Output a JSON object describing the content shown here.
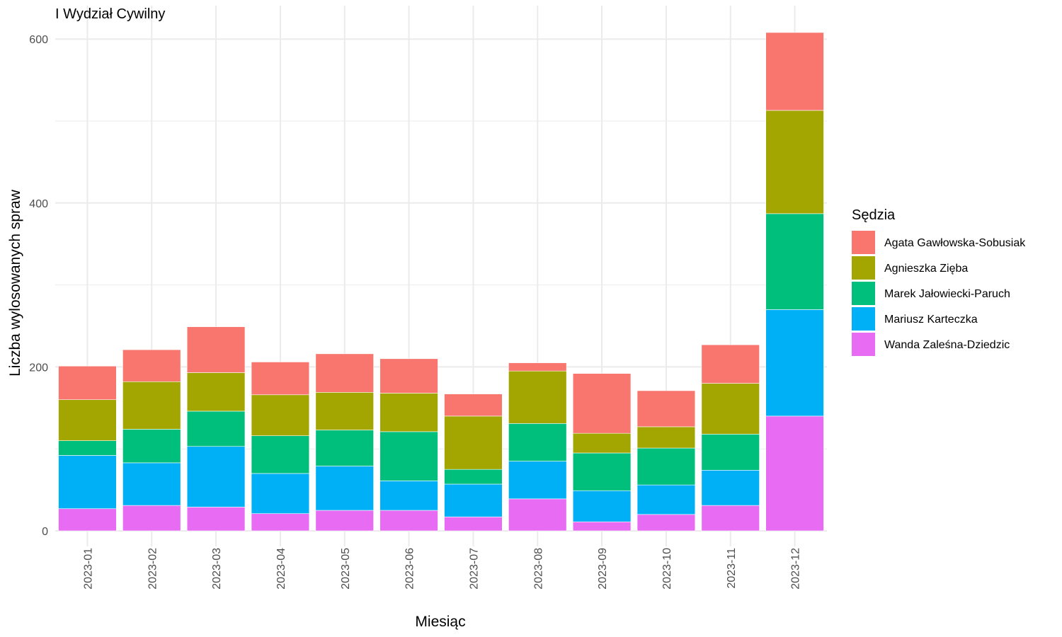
{
  "chart_data": {
    "type": "bar",
    "stacked": true,
    "title": "I Wydział Cywilny",
    "xlabel": "Miesiąc",
    "ylabel": "Liczba wylosowanych spraw",
    "ylim": [
      0,
      620
    ],
    "yticks": [
      0,
      200,
      400,
      600
    ],
    "grid": true,
    "legend": {
      "title": "Sędzia",
      "position": "right"
    },
    "categories": [
      "2023-01",
      "2023-02",
      "2023-03",
      "2023-04",
      "2023-05",
      "2023-06",
      "2023-07",
      "2023-08",
      "2023-09",
      "2023-10",
      "2023-11",
      "2023-12"
    ],
    "series": [
      {
        "name": "Wanda Zaleśna-Dziedzic",
        "color": "#E76BF3",
        "values": [
          27,
          31,
          29,
          21,
          25,
          25,
          17,
          39,
          11,
          20,
          31,
          140
        ]
      },
      {
        "name": "Mariusz Karteczka",
        "color": "#00B0F6",
        "values": [
          65,
          52,
          74,
          49,
          54,
          36,
          40,
          46,
          38,
          36,
          43,
          130
        ]
      },
      {
        "name": "Marek Jałowiecki-Paruch",
        "color": "#00BF7D",
        "values": [
          18,
          41,
          43,
          46,
          44,
          60,
          18,
          46,
          46,
          45,
          44,
          117
        ]
      },
      {
        "name": "Agnieszka Zięba",
        "color": "#A3A500",
        "values": [
          50,
          58,
          47,
          50,
          46,
          47,
          65,
          64,
          24,
          26,
          62,
          126
        ]
      },
      {
        "name": "Agata Gawłowska-Sobusiak",
        "color": "#F8766D",
        "values": [
          41,
          39,
          56,
          40,
          47,
          42,
          27,
          10,
          73,
          44,
          47,
          95
        ]
      }
    ]
  }
}
